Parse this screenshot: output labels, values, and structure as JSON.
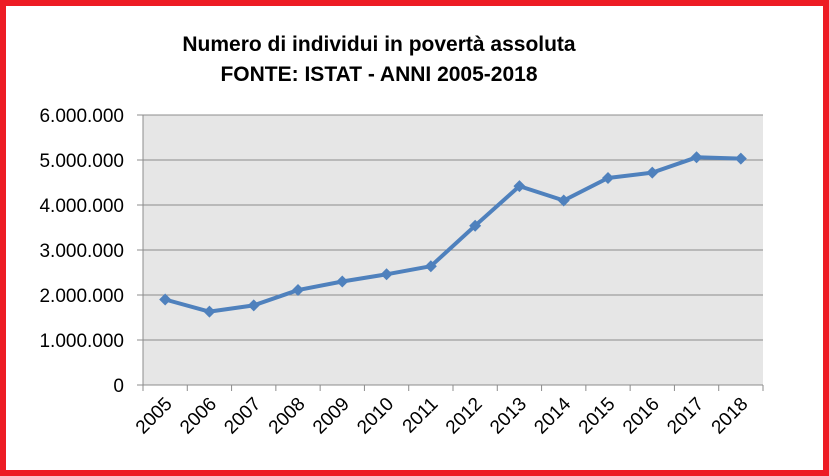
{
  "chart_data": {
    "type": "line",
    "title": "Numero di individui in povertà assoluta",
    "subtitle": "FONTE: ISTAT - ANNI 2005-2018",
    "categories": [
      "2005",
      "2006",
      "2007",
      "2008",
      "2009",
      "2010",
      "2011",
      "2012",
      "2013",
      "2014",
      "2015",
      "2016",
      "2017",
      "2018"
    ],
    "values": [
      1900000,
      1630000,
      1770000,
      2110000,
      2300000,
      2460000,
      2640000,
      3540000,
      4420000,
      4100000,
      4600000,
      4720000,
      5060000,
      5030000
    ],
    "yticks": [
      "0",
      "1.000.000",
      "2.000.000",
      "3.000.000",
      "4.000.000",
      "5.000.000",
      "6.000.000"
    ],
    "ylim": [
      0,
      6000000
    ],
    "grid": true,
    "line_color": "#4f81bd",
    "plot_background": "#e6e6e6",
    "frame_color": "#ed1c24"
  }
}
